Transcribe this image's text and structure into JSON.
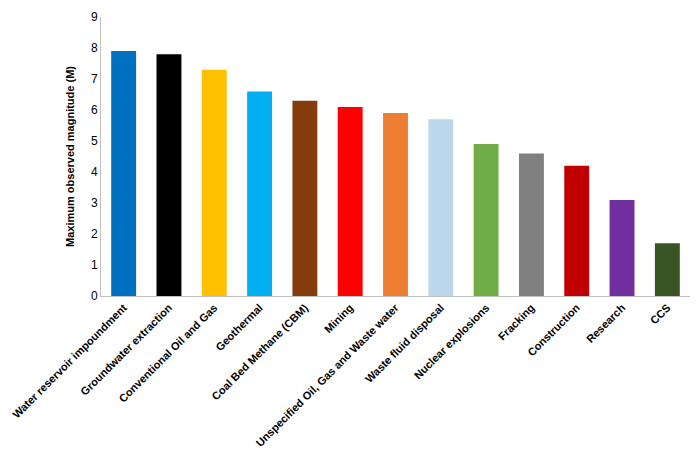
{
  "chart_data": {
    "type": "bar",
    "y_label": "Maximum observed magnitude (M)",
    "categories": [
      "Water reservoir impoundment",
      "Groundwater extraction",
      "Conventional Oil and Gas",
      "Geothermal",
      "Coal Bed Methane (CBM)",
      "Mining",
      "Unspecified Oil, Gas and Waste water",
      "Waste fluid disposal",
      "Nuclear explosions",
      "Fracking",
      "Construction",
      "Research",
      "CCS"
    ],
    "values": [
      7.9,
      7.8,
      7.3,
      6.6,
      6.3,
      6.1,
      5.9,
      5.7,
      4.9,
      4.6,
      4.2,
      3.1,
      1.7
    ],
    "colors": [
      "#0070c0",
      "#000000",
      "#ffc000",
      "#00b0f0",
      "#843c0c",
      "#ff0000",
      "#ed7d31",
      "#bdd7ee",
      "#70ad47",
      "#808080",
      "#c00000",
      "#7030a0",
      "#375623"
    ],
    "ylim": [
      0,
      9
    ],
    "yticks": [
      0,
      1,
      2,
      3,
      4,
      5,
      6,
      7,
      8,
      9
    ],
    "grid": false
  }
}
